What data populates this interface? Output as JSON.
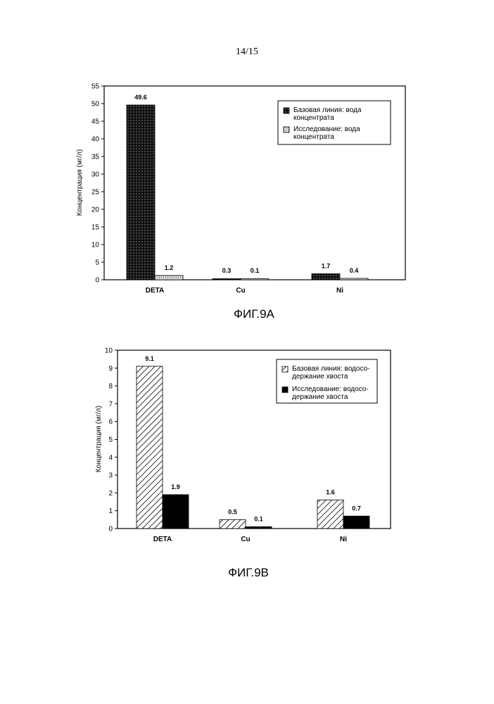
{
  "page": {
    "number": "14/15"
  },
  "colors": {
    "ink": "#000000",
    "paper": "#ffffff"
  },
  "chart_data": [
    {
      "type": "bar",
      "caption": "ФИГ.9A",
      "categories": [
        "DETA",
        "Cu",
        "Ni"
      ],
      "series": [
        {
          "name": "Базовая линия: вода концентрата",
          "values": [
            49.6,
            0.3,
            1.7
          ],
          "labels": [
            "49.6",
            "0.3",
            "1.7"
          ],
          "pattern": "dark-dots"
        },
        {
          "name": "Исследование: вода концентрата",
          "values": [
            1.2,
            0.1,
            0.4
          ],
          "labels": [
            "1.2",
            "0.1",
            "0.4"
          ],
          "pattern": "light-dots"
        }
      ],
      "ylabel": "Концентрация (мг/л)",
      "xlabel": "",
      "ylim": [
        0,
        55
      ],
      "yticks": [
        0,
        5,
        10,
        15,
        20,
        25,
        30,
        35,
        40,
        45,
        50,
        55
      ],
      "grid": false,
      "legend": {
        "position": "top-right",
        "entries": [
          {
            "lines": [
              "Базовая линия: вода",
              "концентрата"
            ]
          },
          {
            "lines": [
              "Исследование: вода",
              "концентрата"
            ]
          }
        ]
      }
    },
    {
      "type": "bar",
      "caption": "ФИГ.9B",
      "categories": [
        "DETA",
        "Cu",
        "Ni"
      ],
      "series": [
        {
          "name": "Базовая линия: водосодержание хвоста",
          "values": [
            9.1,
            0.5,
            1.6
          ],
          "labels": [
            "9.1",
            "0.5",
            "1.6"
          ],
          "pattern": "diagonal-hatch"
        },
        {
          "name": "Исследование: водосодержание хвоста",
          "values": [
            1.9,
            0.1,
            0.7
          ],
          "labels": [
            "1.9",
            "0.1",
            "0.7"
          ],
          "pattern": "solid-black"
        }
      ],
      "ylabel": "Концентрация (мг/л)",
      "xlabel": "",
      "ylim": [
        0,
        10
      ],
      "yticks": [
        0,
        1,
        2,
        3,
        4,
        5,
        6,
        7,
        8,
        9,
        10
      ],
      "grid": false,
      "legend": {
        "position": "top-right",
        "entries": [
          {
            "lines": [
              "Базовая линия: водосо-",
              "держание хвоста"
            ]
          },
          {
            "lines": [
              "Исследование: водосо-",
              "держание хвоста"
            ]
          }
        ]
      }
    }
  ]
}
